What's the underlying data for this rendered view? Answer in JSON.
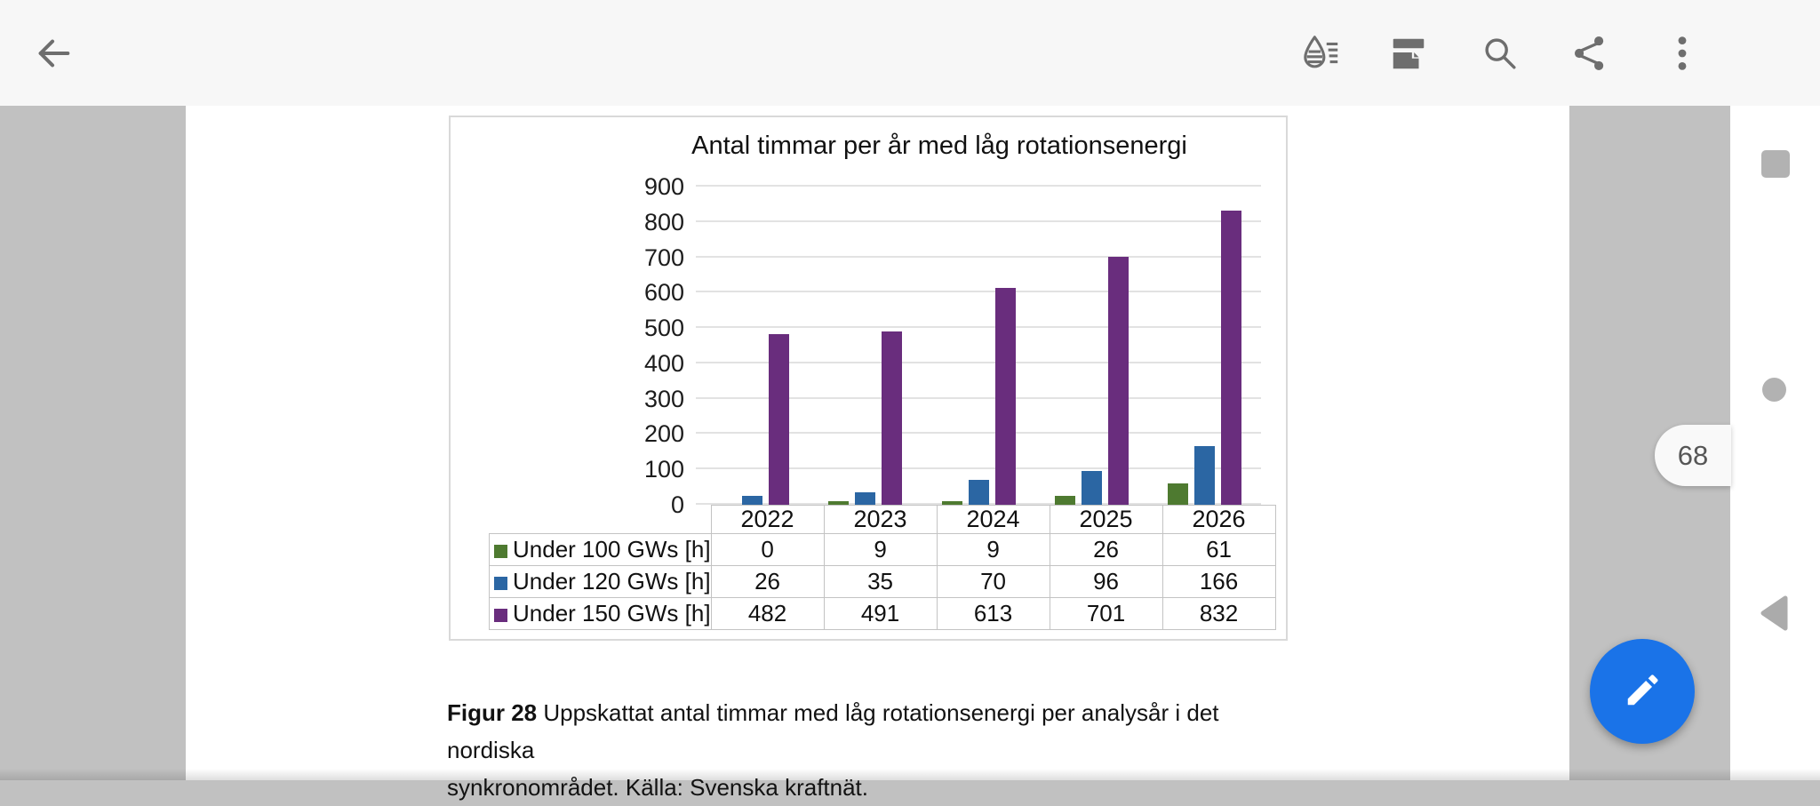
{
  "toolbar": {
    "icons": [
      "back-arrow-icon",
      "ink-annotate-icon",
      "print-layout-icon",
      "search-icon",
      "share-icon",
      "overflow-menu-icon"
    ]
  },
  "page_badge": "68",
  "chart_data": {
    "type": "bar",
    "title": "Antal timmar per år med låg rotationsenergi",
    "categories": [
      "2022",
      "2023",
      "2024",
      "2025",
      "2026"
    ],
    "series": [
      {
        "name": "Under 100 GWs [h]",
        "color": "#4e7a30",
        "values": [
          0,
          9,
          9,
          26,
          61
        ]
      },
      {
        "name": "Under 120 GWs [h]",
        "color": "#2b66a3",
        "values": [
          26,
          35,
          70,
          96,
          166
        ]
      },
      {
        "name": "Under 150 GWs [h]",
        "color": "#692d7d",
        "values": [
          482,
          491,
          613,
          701,
          832
        ]
      }
    ],
    "ylim": [
      0,
      900
    ],
    "ytick_step": 100,
    "grid": true,
    "legend_position": "table-below-chart"
  },
  "caption": {
    "bold_label": "Figur 28",
    "line1_rest": " Uppskattat antal timmar med låg rotationsenergi per analysår i det nordiska",
    "line2": "synkronområdet. Källa: Svenska kraftnät."
  },
  "colors": {
    "fab_blue": "#1a73e8",
    "toolbar_icon_gray": "#6e6e6e",
    "canvas_gray": "#c1c1c1"
  }
}
